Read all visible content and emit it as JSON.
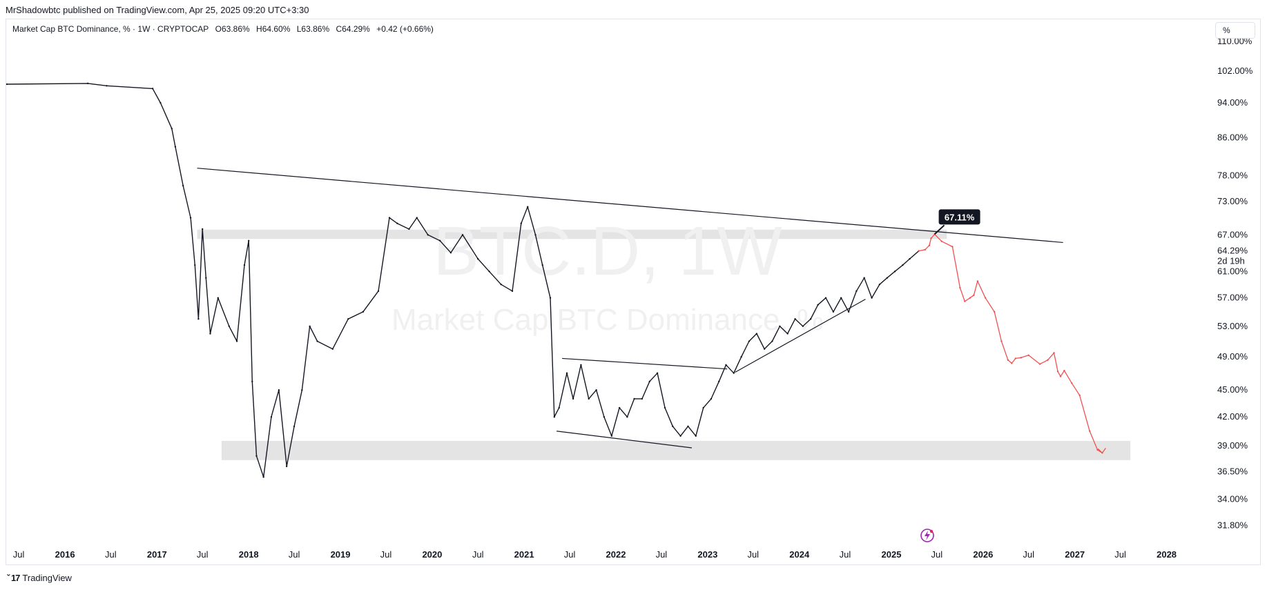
{
  "publish_line": "MrShadowbtc published on TradingView.com, Apr 25, 2025 09:20 UTC+3:30",
  "legend": {
    "symbol": "Market Cap BTC Dominance, % · 1W · CRYPTOCAP",
    "open": "O63.86%",
    "high": "H64.60%",
    "low": "L63.86%",
    "close": "C64.29%",
    "change": "+0.42 (+0.66%)"
  },
  "scale_toggle": "%",
  "watermark": {
    "line1": "BTC.D, 1W",
    "line2": "Market Cap BTC Dominance, %"
  },
  "footer_brand": "TradingView",
  "chart_data": {
    "type": "line",
    "title": "",
    "xlabel": "",
    "ylabel": "",
    "ylim": [
      30.5,
      113
    ],
    "y_scale": "log",
    "xlim": [
      "2015-05-15",
      "2028-06-15"
    ],
    "y_ticks": [
      "110.00%",
      "102.00%",
      "94.00%",
      "86.00%",
      "78.00%",
      "73.00%",
      "67.00%",
      "64.29%",
      "61.00%",
      "57.00%",
      "53.00%",
      "49.00%",
      "45.00%",
      "42.00%",
      "39.00%",
      "36.50%",
      "34.00%",
      "31.80%"
    ],
    "y_tick_values": [
      110,
      102,
      94,
      86,
      78,
      73,
      67,
      64.29,
      61,
      57,
      53,
      49,
      45,
      42,
      39,
      36.5,
      34,
      31.8
    ],
    "current_price_label": "64.29%",
    "countdown_label": "2d 19h",
    "x_ticks": [
      {
        "label": "Jul",
        "date": "2015-07-01",
        "year": false
      },
      {
        "label": "2016",
        "date": "2016-01-01",
        "year": true
      },
      {
        "label": "Jul",
        "date": "2016-07-01",
        "year": false
      },
      {
        "label": "2017",
        "date": "2017-01-01",
        "year": true
      },
      {
        "label": "Jul",
        "date": "2017-07-01",
        "year": false
      },
      {
        "label": "2018",
        "date": "2018-01-01",
        "year": true
      },
      {
        "label": "Jul",
        "date": "2018-07-01",
        "year": false
      },
      {
        "label": "2019",
        "date": "2019-01-01",
        "year": true
      },
      {
        "label": "Jul",
        "date": "2019-07-01",
        "year": false
      },
      {
        "label": "2020",
        "date": "2020-01-01",
        "year": true
      },
      {
        "label": "Jul",
        "date": "2020-07-01",
        "year": false
      },
      {
        "label": "2021",
        "date": "2021-01-01",
        "year": true
      },
      {
        "label": "Jul",
        "date": "2021-07-01",
        "year": false
      },
      {
        "label": "2022",
        "date": "2022-01-01",
        "year": true
      },
      {
        "label": "Jul",
        "date": "2022-07-01",
        "year": false
      },
      {
        "label": "2023",
        "date": "2023-01-01",
        "year": true
      },
      {
        "label": "Jul",
        "date": "2023-07-01",
        "year": false
      },
      {
        "label": "2024",
        "date": "2024-01-01",
        "year": true
      },
      {
        "label": "Jul",
        "date": "2024-07-01",
        "year": false
      },
      {
        "label": "2025",
        "date": "2025-01-01",
        "year": true
      },
      {
        "label": "Jul",
        "date": "2025-07-01",
        "year": false
      },
      {
        "label": "2026",
        "date": "2026-01-01",
        "year": true
      },
      {
        "label": "Jul",
        "date": "2026-07-01",
        "year": false
      },
      {
        "label": "2027",
        "date": "2027-01-01",
        "year": true
      },
      {
        "label": "Jul",
        "date": "2027-07-01",
        "year": false
      },
      {
        "label": "2028",
        "date": "2028-01-01",
        "year": true
      }
    ],
    "series": [
      {
        "values_date": [
          "2015-05-15",
          "2016-04-01",
          "2016-06-15",
          "2016-12-15",
          "2017-01-15",
          "2017-03-01",
          "2017-03-15",
          "2017-04-15",
          "2017-05-15",
          "2017-06-01",
          "2017-06-15",
          "2017-07-01",
          "2017-07-15",
          "2017-08-01",
          "2017-09-01",
          "2017-10-15",
          "2017-11-15",
          "2017-12-15",
          "2018-01-01",
          "2018-01-15",
          "2018-02-01",
          "2018-03-01",
          "2018-04-01",
          "2018-05-01",
          "2018-06-01",
          "2018-07-01",
          "2018-08-01",
          "2018-09-01",
          "2018-10-01",
          "2018-12-01",
          "2019-02-01",
          "2019-04-01",
          "2019-06-01",
          "2019-07-15",
          "2019-08-15",
          "2019-10-01",
          "2019-11-01",
          "2019-12-15",
          "2020-02-01",
          "2020-03-15",
          "2020-05-01",
          "2020-07-01",
          "2020-08-15",
          "2020-10-01",
          "2020-11-15",
          "2020-12-20",
          "2021-01-15",
          "2021-02-15",
          "2021-03-15",
          "2021-04-15",
          "2021-05-01",
          "2021-05-20",
          "2021-06-20",
          "2021-07-15",
          "2021-08-15",
          "2021-09-15",
          "2021-10-15",
          "2021-11-15",
          "2021-12-15",
          "2022-01-15",
          "2022-02-15",
          "2022-03-15",
          "2022-04-15",
          "2022-05-15",
          "2022-06-15",
          "2022-07-15",
          "2022-08-15",
          "2022-09-15",
          "2022-10-15",
          "2022-11-15",
          "2022-12-15",
          "2023-01-15",
          "2023-02-15",
          "2023-03-15",
          "2023-04-15",
          "2023-05-15",
          "2023-06-15",
          "2023-07-15",
          "2023-08-15",
          "2023-09-15",
          "2023-10-15",
          "2023-11-15",
          "2023-12-15",
          "2024-01-15",
          "2024-02-15",
          "2024-03-15",
          "2024-04-15",
          "2024-05-15",
          "2024-06-15",
          "2024-07-15",
          "2024-08-15",
          "2024-09-15",
          "2024-10-15",
          "2024-11-15",
          "2024-12-15",
          "2025-01-15",
          "2025-02-15",
          "2025-03-15",
          "2025-04-20"
        ],
        "values": [
          98.6,
          98.8,
          98.2,
          97.5,
          94,
          88,
          84,
          76,
          70,
          62,
          54,
          68,
          60,
          52,
          57,
          53,
          51,
          62,
          66,
          46,
          38,
          36,
          42,
          45,
          37,
          41,
          45,
          53,
          51,
          50,
          54,
          55,
          58,
          70,
          69,
          68,
          70,
          67,
          66,
          64,
          67,
          63,
          61,
          59,
          58,
          69,
          72,
          67,
          62,
          57,
          42,
          43,
          47,
          44,
          48,
          44,
          45,
          42,
          40,
          43,
          42,
          44,
          44,
          46,
          47,
          43,
          41,
          40,
          41,
          40,
          43,
          44,
          46,
          48,
          47,
          49,
          51,
          52,
          50,
          51,
          53,
          52,
          54,
          53,
          54,
          56,
          57,
          55,
          57,
          55,
          58,
          60,
          57,
          59,
          60,
          61,
          62,
          63,
          64.29
        ]
      },
      {
        "role": "projection",
        "values_date": [
          "2025-04-20",
          "2025-05-15",
          "2025-06-01",
          "2025-06-08",
          "2025-06-22",
          "2025-07-20",
          "2025-09-01",
          "2025-10-01",
          "2025-10-20",
          "2025-11-10",
          "2025-11-25",
          "2025-12-10",
          "2026-01-10",
          "2026-02-15",
          "2026-03-15",
          "2026-04-10",
          "2026-04-25",
          "2026-05-10",
          "2026-06-01",
          "2026-07-01",
          "2026-08-15",
          "2026-09-15",
          "2026-10-10",
          "2026-10-25",
          "2026-11-05",
          "2026-11-20",
          "2026-12-20",
          "2027-01-20",
          "2027-03-01",
          "2027-04-01",
          "2027-04-20"
        ],
        "values": [
          64.3,
          64.5,
          65.2,
          66.4,
          67.11,
          65.9,
          65.0,
          58.5,
          56.5,
          57.0,
          57.4,
          59.5,
          57.0,
          55.0,
          51.0,
          48.6,
          48.2,
          48.8,
          48.9,
          49.2,
          48.1,
          48.6,
          49.5,
          47.2,
          46.6,
          47.3,
          45.8,
          44.4,
          40.5,
          38.6,
          38.3
        ]
      }
    ],
    "annotations": [
      {
        "type": "price_label",
        "text": "67.11%",
        "date": "2025-06-22",
        "value": 67.11
      },
      {
        "type": "trendline",
        "from": {
          "date": "2017-06-10",
          "value": 79.5
        },
        "to": {
          "date": "2026-11-15",
          "value": 65.7
        }
      },
      {
        "type": "trendline",
        "from": {
          "date": "2021-06-01",
          "value": 48.8
        },
        "to": {
          "date": "2023-03-20",
          "value": 47.5
        }
      },
      {
        "type": "trendline",
        "from": {
          "date": "2021-05-10",
          "value": 40.5
        },
        "to": {
          "date": "2022-10-30",
          "value": 38.8
        }
      },
      {
        "type": "trendline",
        "from": {
          "date": "2023-04-20",
          "value": 47.1
        },
        "to": {
          "date": "2024-09-20",
          "value": 56.8
        }
      },
      {
        "type": "zone",
        "from": "2017-06-10",
        "to": "2025-08-10",
        "y_low": 66.3,
        "y_high": 67.9,
        "color": "#e4e4e4"
      },
      {
        "type": "zone",
        "from": "2017-09-15",
        "to": "2027-08-10",
        "y_low": 37.6,
        "y_high": 39.5,
        "color": "#e4e4e4"
      }
    ],
    "colors": {
      "price_line": "#131722",
      "projection": "#f05050",
      "trendline": "#131722",
      "label_bg": "#131722",
      "label_text": "#ffffff",
      "watermark": "#f0f0f0"
    }
  }
}
